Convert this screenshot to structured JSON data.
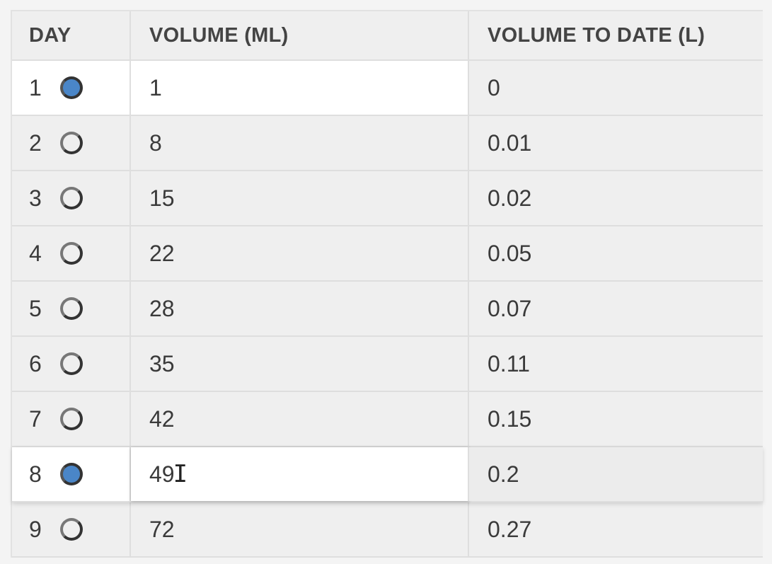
{
  "table": {
    "headers": {
      "day": "DAY",
      "volume": "VOLUME (ML)",
      "volume_to_date": "VOLUME TO DATE (L)"
    },
    "rows": [
      {
        "day": "1",
        "selected": true,
        "volume": "1",
        "volume_to_date": "0"
      },
      {
        "day": "2",
        "selected": false,
        "volume": "8",
        "volume_to_date": "0.01"
      },
      {
        "day": "3",
        "selected": false,
        "volume": "15",
        "volume_to_date": "0.02"
      },
      {
        "day": "4",
        "selected": false,
        "volume": "22",
        "volume_to_date": "0.05"
      },
      {
        "day": "5",
        "selected": false,
        "volume": "28",
        "volume_to_date": "0.07"
      },
      {
        "day": "6",
        "selected": false,
        "volume": "35",
        "volume_to_date": "0.11"
      },
      {
        "day": "7",
        "selected": false,
        "volume": "42",
        "volume_to_date": "0.15"
      },
      {
        "day": "8",
        "selected": true,
        "volume": "49",
        "volume_to_date": "0.2"
      },
      {
        "day": "9",
        "selected": false,
        "volume": "72",
        "volume_to_date": "0.27"
      }
    ]
  },
  "colors": {
    "radio_selected": "#4a86c8",
    "background": "#efefef"
  },
  "icons": {
    "radio": "radio-button-icon",
    "text_cursor": "i-beam-cursor-icon"
  }
}
